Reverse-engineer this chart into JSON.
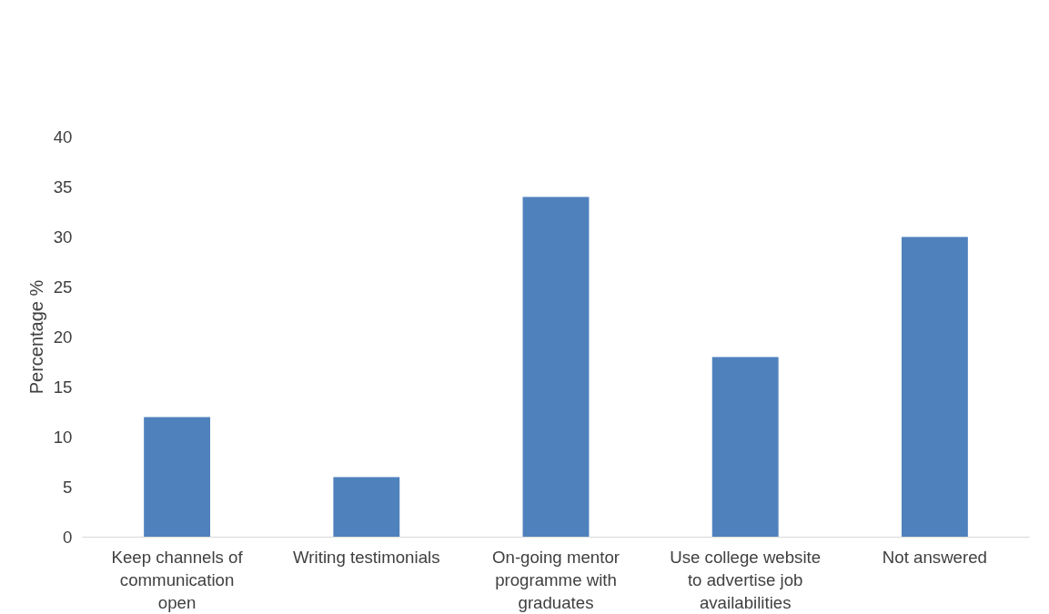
{
  "chart_data": {
    "type": "bar",
    "ylabel": "Percentage %",
    "categories": [
      "Keep channels of\ncommunication\nopen",
      "Writing testimonials",
      "On-going mentor\nprogramme with\ngraduates",
      "Use college website\nto advertise job\navailabilities",
      "Not answered"
    ],
    "values": [
      12,
      6,
      34,
      18,
      30
    ],
    "color": "#4f81bd",
    "ylim": [
      0,
      40
    ],
    "yticks": [
      0,
      5,
      10,
      15,
      20,
      25,
      30,
      35,
      40
    ],
    "grid": false
  }
}
